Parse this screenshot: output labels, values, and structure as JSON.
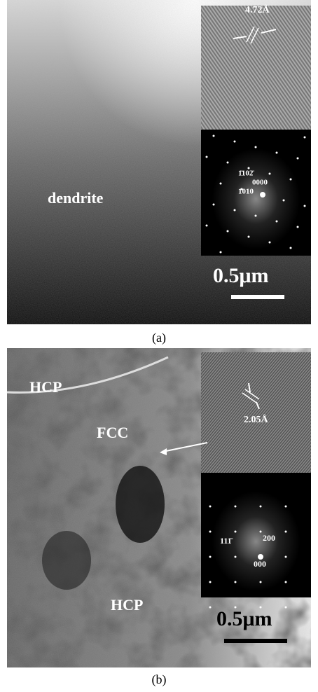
{
  "panel_a": {
    "main_label": "dendrite",
    "lattice_spacing": "4.72Å",
    "diffraction_indices": [
      "1̄102̄",
      "0000",
      "1̄010"
    ],
    "scale_bar": "0.5μm",
    "caption": "(a)"
  },
  "panel_b": {
    "phase_labels": [
      "HCP",
      "FCC",
      "HCP"
    ],
    "lattice_spacing": "2.05Å",
    "diffraction_indices": [
      "111̄",
      "200",
      "000"
    ],
    "scale_bar": "0.5μm",
    "caption": "(b)"
  }
}
